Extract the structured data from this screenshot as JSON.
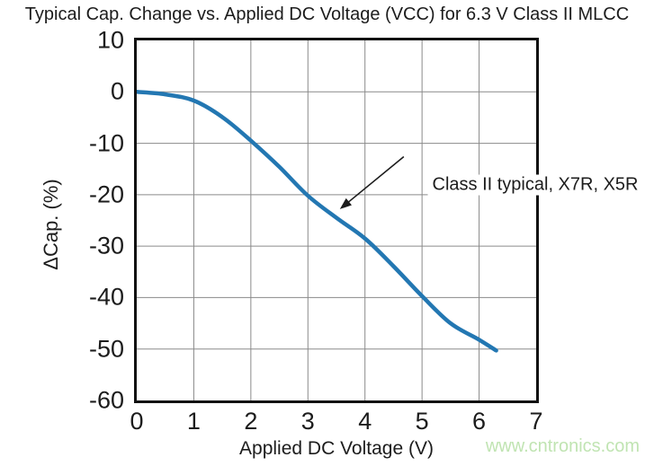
{
  "watermark": "www.cntronics.com",
  "colors": {
    "curve": "#2377b2",
    "grid": "#8a8a8a",
    "border": "#111111",
    "text": "#1c1c1c",
    "watermark": "#c0e4b2",
    "background": "#ffffff"
  },
  "chart_data": {
    "type": "line",
    "title": "Typical Cap. Change vs. Applied DC Voltage (VCC) for 6.3 V Class II MLCC",
    "xlabel": "Applied DC Voltage (V)",
    "ylabel": "ΔCap. (%)",
    "xlim": [
      0,
      7
    ],
    "ylim": [
      -60,
      10
    ],
    "x_ticks": [
      0,
      1,
      2,
      3,
      4,
      5,
      6,
      7
    ],
    "y_ticks": [
      10,
      0,
      -10,
      -20,
      -30,
      -40,
      -50,
      -60
    ],
    "grid": true,
    "legend_position": "none",
    "series": [
      {
        "name": "Class II typical, X7R, X5R",
        "x": [
          0,
          0.5,
          1,
          1.5,
          2,
          2.5,
          3,
          3.5,
          4,
          4.5,
          5,
          5.5,
          6,
          6.3
        ],
        "y": [
          0,
          -0.5,
          -1.7,
          -4.9,
          -9.5,
          -14.6,
          -20.2,
          -24.5,
          -28.5,
          -33.9,
          -39.7,
          -45,
          -48.2,
          -50.3
        ]
      }
    ],
    "annotation": {
      "text": "Class II typical, X7R, X5R",
      "arrow_from": [
        4.68,
        -12.6
      ],
      "arrow_to": [
        3.56,
        -22.8
      ]
    }
  }
}
